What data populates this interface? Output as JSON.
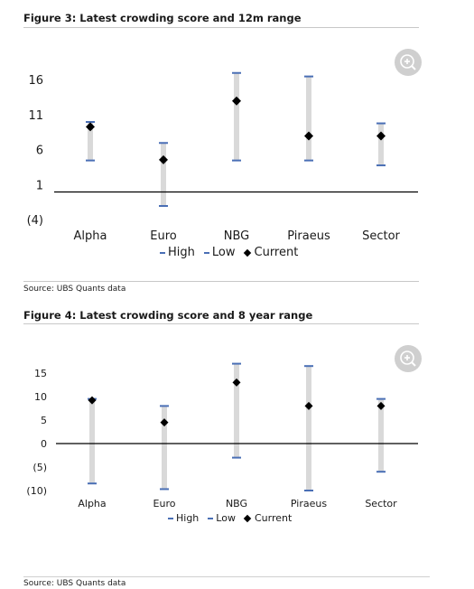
{
  "figures": [
    {
      "title": "Figure 3: Latest crowding score and 12m range",
      "source": "Source: UBS Quants data",
      "legend": {
        "high": "High",
        "low": "Low",
        "current": "Current"
      },
      "zoom_icon": "zoom-in-icon"
    },
    {
      "title": "Figure 4: Latest crowding score and 8 year range",
      "source": "Source: UBS Quants data",
      "legend": {
        "high": "High",
        "low": "Low",
        "current": "Current"
      },
      "zoom_icon": "zoom-in-icon"
    }
  ],
  "colors": {
    "range_bar": "#d9d9d9",
    "high_low_marker": "#4a6fb5",
    "current_marker": "#000000",
    "zero_line": "#000000"
  },
  "chart_data": [
    {
      "type": "range",
      "categories": [
        "Alpha",
        "Euro",
        "NBG",
        "Piraeus",
        "Sector"
      ],
      "series": [
        {
          "name": "High",
          "values": [
            10,
            7,
            17,
            16.5,
            9.8
          ]
        },
        {
          "name": "Low",
          "values": [
            4.5,
            -2,
            4.5,
            4.5,
            3.8
          ]
        },
        {
          "name": "Current",
          "values": [
            9.3,
            4.6,
            13,
            8,
            8
          ]
        }
      ],
      "y_ticks": [
        "16",
        "11",
        "6",
        "1",
        "(4)"
      ],
      "y_tick_values": [
        16,
        11,
        6,
        1,
        -4
      ],
      "ylim": [
        -4,
        18
      ]
    },
    {
      "type": "range",
      "categories": [
        "Alpha",
        "Euro",
        "NBG",
        "Piraeus",
        "Sector"
      ],
      "series": [
        {
          "name": "High",
          "values": [
            9.5,
            8,
            17,
            16.5,
            9.5
          ]
        },
        {
          "name": "Low",
          "values": [
            -8.5,
            -9.7,
            -3,
            -10,
            -6
          ]
        },
        {
          "name": "Current",
          "values": [
            9.2,
            4.5,
            13,
            8,
            8
          ]
        }
      ],
      "y_ticks": [
        "15",
        "10",
        "5",
        "0",
        "(5)",
        "(10)"
      ],
      "y_tick_values": [
        15,
        10,
        5,
        0,
        -5,
        -10
      ],
      "ylim": [
        -10,
        18
      ]
    }
  ]
}
